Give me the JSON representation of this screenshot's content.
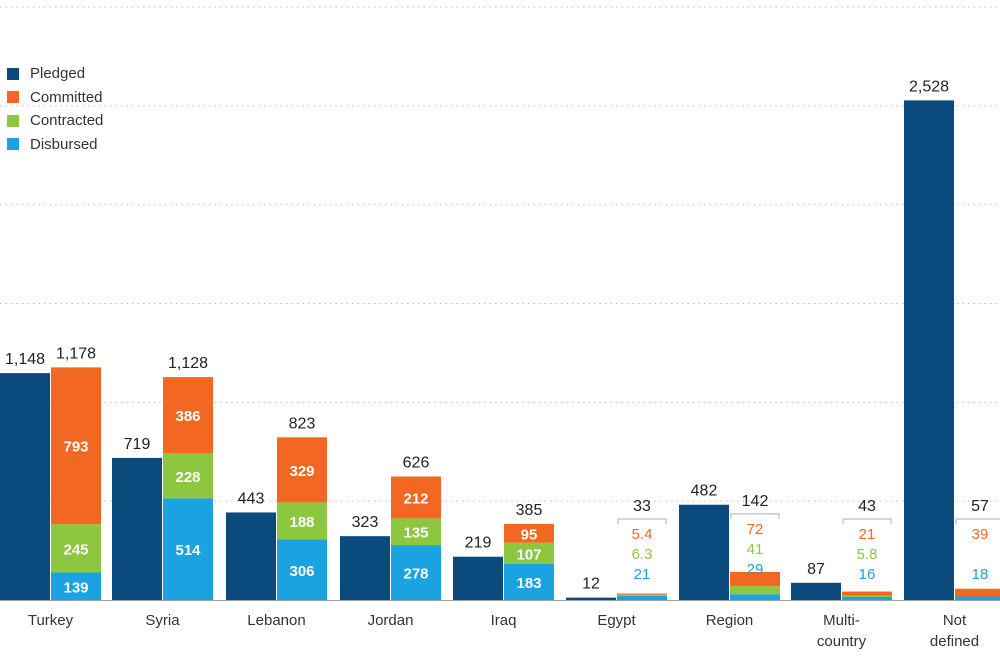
{
  "chart_data": {
    "type": "bar",
    "stacked_secondary": true,
    "categories": [
      {
        "label": [
          "Turkey"
        ]
      },
      {
        "label": [
          "Syria"
        ]
      },
      {
        "label": [
          "Lebanon"
        ]
      },
      {
        "label": [
          "Jordan"
        ]
      },
      {
        "label": [
          "Iraq"
        ]
      },
      {
        "label": [
          "Egypt"
        ]
      },
      {
        "label": [
          "Region"
        ]
      },
      {
        "label": [
          "Multi-",
          "country"
        ]
      },
      {
        "label": [
          "Not",
          "defined"
        ]
      }
    ],
    "series": [
      {
        "name": "Pledged",
        "color": "#0b4a7c",
        "values": [
          1148,
          719,
          443,
          323,
          219,
          12,
          482,
          87,
          2528
        ]
      },
      {
        "name": "Committed",
        "color": "#f26722",
        "values": [
          793,
          386,
          329,
          212,
          95,
          5.4,
          72,
          21,
          39
        ]
      },
      {
        "name": "Contracted",
        "color": "#8dc63f",
        "values": [
          245,
          228,
          188,
          135,
          107,
          6.3,
          41,
          5.8,
          null
        ]
      },
      {
        "name": "Disbursed",
        "color": "#1aa3e0",
        "values": [
          139,
          514,
          306,
          278,
          183,
          21,
          29,
          16,
          18
        ]
      }
    ],
    "pledged_labels": [
      "1,148",
      "719",
      "443",
      "323",
      "219",
      "12",
      "482",
      "87",
      "2,528"
    ],
    "committed_totals": [
      "1,178",
      "1,128",
      "823",
      "626",
      "385",
      "33",
      "142",
      "43",
      "57"
    ],
    "segment_labels": {
      "committed": [
        "793",
        "386",
        "329",
        "212",
        "95",
        "5.4",
        "72",
        "21",
        "39"
      ],
      "contracted": [
        "245",
        "228",
        "188",
        "135",
        "107",
        "6.3",
        "41",
        "5.8",
        ""
      ],
      "disbursed": [
        "139",
        "514",
        "306",
        "278",
        "183",
        "21",
        "29",
        "16",
        "18"
      ]
    },
    "external_labels": [
      false,
      false,
      false,
      false,
      false,
      true,
      true,
      true,
      true
    ],
    "ylim": [
      0,
      3000
    ],
    "grid": true,
    "legend_position": "top-left"
  }
}
